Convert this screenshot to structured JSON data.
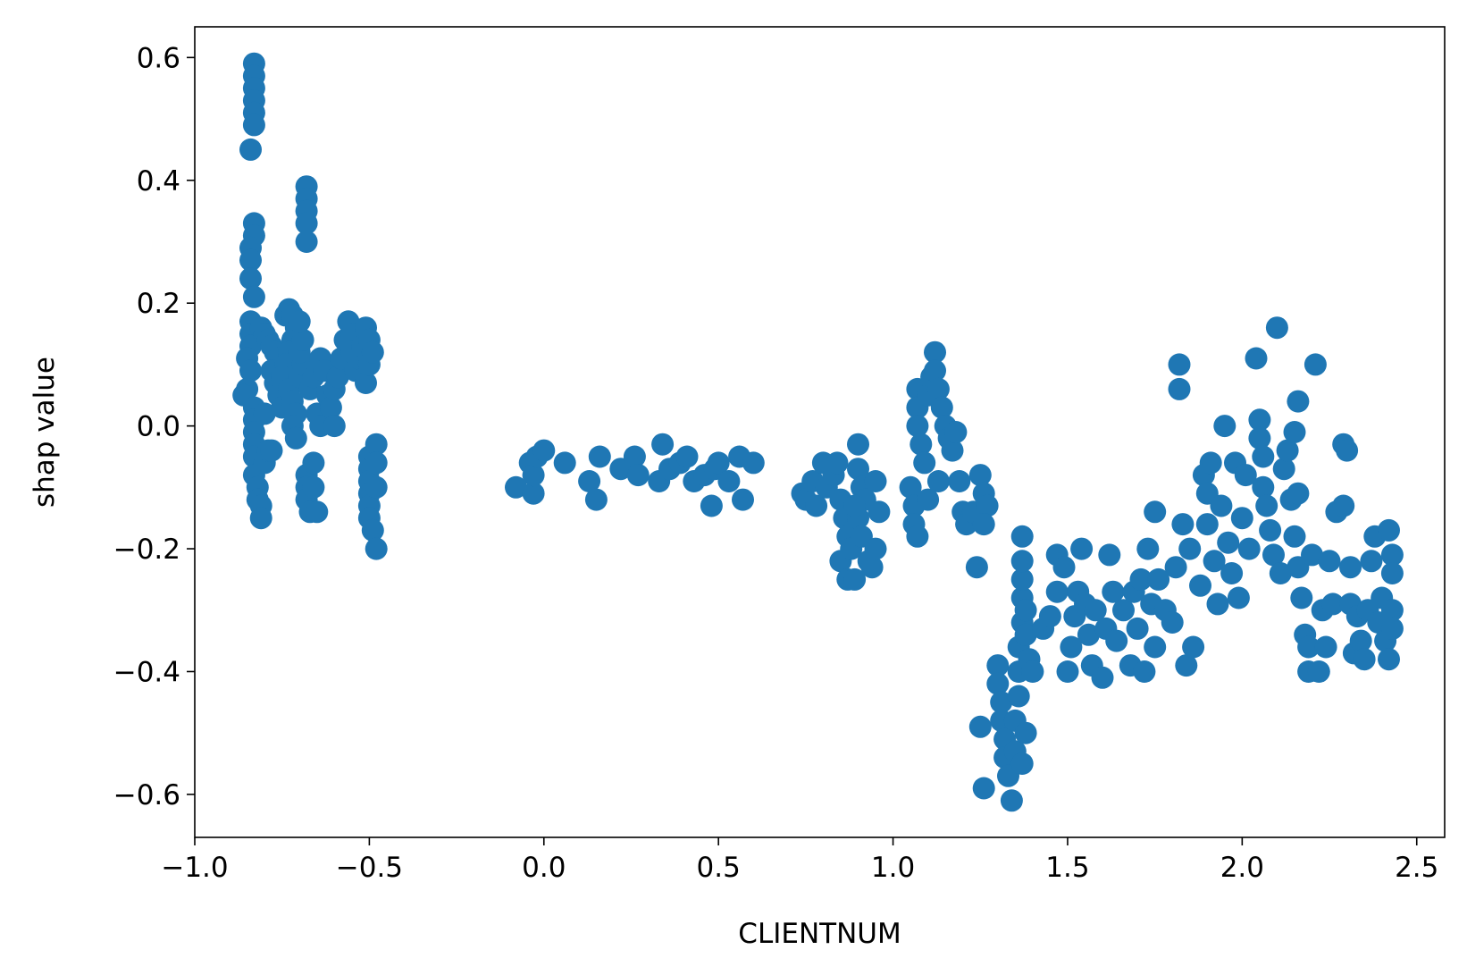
{
  "chart_data": {
    "type": "scatter",
    "xlabel": "CLIENTNUM",
    "ylabel": "shap value",
    "xlim": [
      -1.0,
      2.58
    ],
    "ylim": [
      -0.67,
      0.65
    ],
    "xticks": [
      -1.0,
      -0.5,
      0.0,
      0.5,
      1.0,
      1.5,
      2.0,
      2.5
    ],
    "xtick_labels": [
      "−1.0",
      "−0.5",
      "0.0",
      "0.5",
      "1.0",
      "1.5",
      "2.0",
      "2.5"
    ],
    "yticks": [
      0.6,
      0.4,
      0.2,
      0.0,
      -0.2,
      -0.4,
      -0.6
    ],
    "ytick_labels": [
      "0.6",
      "0.4",
      "0.2",
      "0.0",
      "−0.2",
      "−0.4",
      "−0.6"
    ],
    "grid": false,
    "marker_color": "#1f77b4",
    "points": [
      [
        -0.83,
        0.59
      ],
      [
        -0.83,
        0.57
      ],
      [
        -0.83,
        0.55
      ],
      [
        -0.83,
        0.53
      ],
      [
        -0.83,
        0.51
      ],
      [
        -0.83,
        0.49
      ],
      [
        -0.84,
        0.45
      ],
      [
        -0.83,
        0.33
      ],
      [
        -0.83,
        0.31
      ],
      [
        -0.84,
        0.29
      ],
      [
        -0.84,
        0.27
      ],
      [
        -0.84,
        0.24
      ],
      [
        -0.83,
        0.21
      ],
      [
        -0.84,
        0.17
      ],
      [
        -0.84,
        0.15
      ],
      [
        -0.84,
        0.13
      ],
      [
        -0.85,
        0.11
      ],
      [
        -0.84,
        0.09
      ],
      [
        -0.85,
        0.06
      ],
      [
        -0.86,
        0.05
      ],
      [
        -0.83,
        0.03
      ],
      [
        -0.83,
        0.01
      ],
      [
        -0.83,
        -0.01
      ],
      [
        -0.83,
        -0.03
      ],
      [
        -0.83,
        -0.05
      ],
      [
        -0.83,
        -0.08
      ],
      [
        -0.82,
        -0.1
      ],
      [
        -0.82,
        -0.12
      ],
      [
        -0.81,
        -0.13
      ],
      [
        -0.81,
        -0.15
      ],
      [
        -0.8,
        -0.06
      ],
      [
        -0.8,
        0.02
      ],
      [
        -0.79,
        -0.04
      ],
      [
        -0.78,
        -0.04
      ],
      [
        -0.81,
        0.16
      ],
      [
        -0.8,
        0.15
      ],
      [
        -0.79,
        0.14
      ],
      [
        -0.78,
        0.13
      ],
      [
        -0.77,
        0.12
      ],
      [
        -0.76,
        0.11
      ],
      [
        -0.78,
        0.09
      ],
      [
        -0.77,
        0.07
      ],
      [
        -0.76,
        0.05
      ],
      [
        -0.75,
        0.03
      ],
      [
        -0.74,
        0.18
      ],
      [
        -0.73,
        0.19
      ],
      [
        -0.72,
        0.18
      ],
      [
        -0.71,
        0.16
      ],
      [
        -0.72,
        0.14
      ],
      [
        -0.73,
        0.12
      ],
      [
        -0.74,
        0.1
      ],
      [
        -0.75,
        0.08
      ],
      [
        -0.73,
        0.06
      ],
      [
        -0.72,
        0.04
      ],
      [
        -0.71,
        0.02
      ],
      [
        -0.72,
        0.0
      ],
      [
        -0.71,
        -0.02
      ],
      [
        -0.7,
        0.08
      ],
      [
        -0.69,
        0.1
      ],
      [
        -0.7,
        0.12
      ],
      [
        -0.69,
        0.14
      ],
      [
        -0.7,
        0.17
      ],
      [
        -0.68,
        0.39
      ],
      [
        -0.68,
        0.37
      ],
      [
        -0.68,
        0.35
      ],
      [
        -0.68,
        0.33
      ],
      [
        -0.68,
        0.3
      ],
      [
        -0.68,
        -0.08
      ],
      [
        -0.68,
        -0.1
      ],
      [
        -0.68,
        -0.12
      ],
      [
        -0.67,
        -0.14
      ],
      [
        -0.66,
        -0.06
      ],
      [
        -0.66,
        -0.1
      ],
      [
        -0.65,
        -0.14
      ],
      [
        -0.67,
        0.06
      ],
      [
        -0.66,
        0.08
      ],
      [
        -0.65,
        0.1
      ],
      [
        -0.64,
        0.11
      ],
      [
        -0.63,
        0.09
      ],
      [
        -0.65,
        0.02
      ],
      [
        -0.64,
        0.0
      ],
      [
        -0.62,
        0.05
      ],
      [
        -0.61,
        0.03
      ],
      [
        -0.6,
        0.06
      ],
      [
        -0.6,
        0.0
      ],
      [
        -0.59,
        0.08
      ],
      [
        -0.58,
        0.11
      ],
      [
        -0.57,
        0.14
      ],
      [
        -0.56,
        0.17
      ],
      [
        -0.55,
        0.15
      ],
      [
        -0.55,
        0.12
      ],
      [
        -0.54,
        0.09
      ],
      [
        -0.53,
        0.11
      ],
      [
        -0.52,
        0.13
      ],
      [
        -0.51,
        0.16
      ],
      [
        -0.51,
        0.07
      ],
      [
        -0.5,
        0.14
      ],
      [
        -0.5,
        0.1
      ],
      [
        -0.49,
        0.12
      ],
      [
        -0.5,
        -0.05
      ],
      [
        -0.5,
        -0.07
      ],
      [
        -0.5,
        -0.09
      ],
      [
        -0.5,
        -0.11
      ],
      [
        -0.5,
        -0.13
      ],
      [
        -0.5,
        -0.15
      ],
      [
        -0.49,
        -0.17
      ],
      [
        -0.48,
        -0.2
      ],
      [
        -0.48,
        -0.03
      ],
      [
        -0.48,
        -0.06
      ],
      [
        -0.48,
        -0.1
      ],
      [
        -0.08,
        -0.1
      ],
      [
        -0.04,
        -0.06
      ],
      [
        -0.03,
        -0.11
      ],
      [
        -0.03,
        -0.08
      ],
      [
        -0.02,
        -0.05
      ],
      [
        0.0,
        -0.04
      ],
      [
        0.06,
        -0.06
      ],
      [
        0.13,
        -0.09
      ],
      [
        0.15,
        -0.12
      ],
      [
        0.16,
        -0.05
      ],
      [
        0.22,
        -0.07
      ],
      [
        0.26,
        -0.05
      ],
      [
        0.27,
        -0.08
      ],
      [
        0.33,
        -0.09
      ],
      [
        0.34,
        -0.03
      ],
      [
        0.36,
        -0.07
      ],
      [
        0.39,
        -0.06
      ],
      [
        0.41,
        -0.05
      ],
      [
        0.43,
        -0.09
      ],
      [
        0.46,
        -0.08
      ],
      [
        0.48,
        -0.13
      ],
      [
        0.49,
        -0.07
      ],
      [
        0.5,
        -0.06
      ],
      [
        0.53,
        -0.09
      ],
      [
        0.56,
        -0.05
      ],
      [
        0.57,
        -0.12
      ],
      [
        0.6,
        -0.06
      ],
      [
        0.74,
        -0.11
      ],
      [
        0.75,
        -0.12
      ],
      [
        0.77,
        -0.09
      ],
      [
        0.78,
        -0.13
      ],
      [
        0.8,
        -0.06
      ],
      [
        0.81,
        -0.1
      ],
      [
        0.83,
        -0.08
      ],
      [
        0.84,
        -0.06
      ],
      [
        0.85,
        -0.12
      ],
      [
        0.86,
        -0.15
      ],
      [
        0.87,
        -0.18
      ],
      [
        0.85,
        -0.22
      ],
      [
        0.87,
        -0.25
      ],
      [
        0.88,
        -0.2
      ],
      [
        0.89,
        -0.25
      ],
      [
        0.9,
        -0.03
      ],
      [
        0.9,
        -0.07
      ],
      [
        0.91,
        -0.1
      ],
      [
        0.92,
        -0.12
      ],
      [
        0.9,
        -0.15
      ],
      [
        0.91,
        -0.18
      ],
      [
        0.93,
        -0.22
      ],
      [
        0.94,
        -0.23
      ],
      [
        0.95,
        -0.2
      ],
      [
        0.95,
        -0.09
      ],
      [
        0.96,
        -0.14
      ],
      [
        0.89,
        -0.13
      ],
      [
        1.05,
        -0.1
      ],
      [
        1.06,
        -0.13
      ],
      [
        1.06,
        -0.16
      ],
      [
        1.07,
        -0.18
      ],
      [
        1.07,
        0.06
      ],
      [
        1.07,
        0.03
      ],
      [
        1.07,
        0.0
      ],
      [
        1.08,
        -0.03
      ],
      [
        1.09,
        -0.06
      ],
      [
        1.1,
        -0.12
      ],
      [
        1.1,
        0.05
      ],
      [
        1.11,
        0.08
      ],
      [
        1.12,
        0.12
      ],
      [
        1.12,
        0.09
      ],
      [
        1.13,
        0.06
      ],
      [
        1.14,
        0.03
      ],
      [
        1.15,
        0.0
      ],
      [
        1.16,
        -0.02
      ],
      [
        1.17,
        -0.04
      ],
      [
        1.13,
        -0.09
      ],
      [
        1.18,
        -0.01
      ],
      [
        1.19,
        -0.09
      ],
      [
        1.2,
        -0.14
      ],
      [
        1.21,
        -0.16
      ],
      [
        1.23,
        -0.14
      ],
      [
        1.24,
        -0.23
      ],
      [
        1.25,
        -0.08
      ],
      [
        1.26,
        -0.11
      ],
      [
        1.27,
        -0.13
      ],
      [
        1.26,
        -0.16
      ],
      [
        1.25,
        -0.49
      ],
      [
        1.26,
        -0.59
      ],
      [
        1.3,
        -0.39
      ],
      [
        1.3,
        -0.42
      ],
      [
        1.31,
        -0.45
      ],
      [
        1.31,
        -0.48
      ],
      [
        1.32,
        -0.51
      ],
      [
        1.32,
        -0.54
      ],
      [
        1.33,
        -0.57
      ],
      [
        1.34,
        -0.61
      ],
      [
        1.35,
        -0.53
      ],
      [
        1.35,
        -0.48
      ],
      [
        1.36,
        -0.44
      ],
      [
        1.36,
        -0.4
      ],
      [
        1.37,
        -0.55
      ],
      [
        1.38,
        -0.5
      ],
      [
        1.36,
        -0.36
      ],
      [
        1.37,
        -0.32
      ],
      [
        1.37,
        -0.28
      ],
      [
        1.37,
        -0.25
      ],
      [
        1.37,
        -0.22
      ],
      [
        1.37,
        -0.18
      ],
      [
        1.38,
        -0.3
      ],
      [
        1.38,
        -0.34
      ],
      [
        1.39,
        -0.38
      ],
      [
        1.4,
        -0.4
      ],
      [
        1.43,
        -0.33
      ],
      [
        1.45,
        -0.31
      ],
      [
        1.47,
        -0.27
      ],
      [
        1.47,
        -0.21
      ],
      [
        1.49,
        -0.23
      ],
      [
        1.5,
        -0.4
      ],
      [
        1.51,
        -0.36
      ],
      [
        1.52,
        -0.31
      ],
      [
        1.53,
        -0.27
      ],
      [
        1.54,
        -0.2
      ],
      [
        1.55,
        -0.29
      ],
      [
        1.56,
        -0.34
      ],
      [
        1.57,
        -0.39
      ],
      [
        1.58,
        -0.3
      ],
      [
        1.6,
        -0.41
      ],
      [
        1.61,
        -0.33
      ],
      [
        1.62,
        -0.21
      ],
      [
        1.63,
        -0.27
      ],
      [
        1.64,
        -0.35
      ],
      [
        1.66,
        -0.3
      ],
      [
        1.68,
        -0.39
      ],
      [
        1.69,
        -0.27
      ],
      [
        1.7,
        -0.33
      ],
      [
        1.71,
        -0.25
      ],
      [
        1.72,
        -0.4
      ],
      [
        1.73,
        -0.2
      ],
      [
        1.74,
        -0.29
      ],
      [
        1.75,
        -0.36
      ],
      [
        1.75,
        -0.14
      ],
      [
        1.76,
        -0.25
      ],
      [
        1.78,
        -0.3
      ],
      [
        1.8,
        -0.32
      ],
      [
        1.81,
        -0.23
      ],
      [
        1.82,
        0.1
      ],
      [
        1.82,
        0.06
      ],
      [
        1.83,
        -0.16
      ],
      [
        1.84,
        -0.39
      ],
      [
        1.85,
        -0.2
      ],
      [
        1.86,
        -0.36
      ],
      [
        1.88,
        -0.26
      ],
      [
        1.89,
        -0.08
      ],
      [
        1.9,
        -0.11
      ],
      [
        1.9,
        -0.16
      ],
      [
        1.91,
        -0.06
      ],
      [
        1.92,
        -0.22
      ],
      [
        1.93,
        -0.29
      ],
      [
        1.94,
        -0.13
      ],
      [
        1.95,
        0.0
      ],
      [
        1.96,
        -0.19
      ],
      [
        1.97,
        -0.24
      ],
      [
        1.98,
        -0.06
      ],
      [
        1.99,
        -0.28
      ],
      [
        2.0,
        -0.15
      ],
      [
        2.01,
        -0.08
      ],
      [
        2.02,
        -0.2
      ],
      [
        2.04,
        0.11
      ],
      [
        2.05,
        0.01
      ],
      [
        2.05,
        -0.02
      ],
      [
        2.06,
        -0.05
      ],
      [
        2.06,
        -0.1
      ],
      [
        2.07,
        -0.13
      ],
      [
        2.08,
        -0.17
      ],
      [
        2.09,
        -0.21
      ],
      [
        2.1,
        0.16
      ],
      [
        2.11,
        -0.24
      ],
      [
        2.12,
        -0.07
      ],
      [
        2.13,
        -0.04
      ],
      [
        2.14,
        -0.12
      ],
      [
        2.15,
        -0.18
      ],
      [
        2.15,
        -0.01
      ],
      [
        2.16,
        0.04
      ],
      [
        2.16,
        -0.11
      ],
      [
        2.16,
        -0.23
      ],
      [
        2.17,
        -0.28
      ],
      [
        2.18,
        -0.34
      ],
      [
        2.19,
        -0.36
      ],
      [
        2.19,
        -0.4
      ],
      [
        2.2,
        -0.21
      ],
      [
        2.21,
        0.1
      ],
      [
        2.22,
        -0.4
      ],
      [
        2.23,
        -0.3
      ],
      [
        2.24,
        -0.36
      ],
      [
        2.25,
        -0.22
      ],
      [
        2.26,
        -0.29
      ],
      [
        2.27,
        -0.14
      ],
      [
        2.29,
        -0.03
      ],
      [
        2.29,
        -0.13
      ],
      [
        2.3,
        -0.04
      ],
      [
        2.31,
        -0.23
      ],
      [
        2.31,
        -0.29
      ],
      [
        2.32,
        -0.37
      ],
      [
        2.33,
        -0.31
      ],
      [
        2.34,
        -0.35
      ],
      [
        2.35,
        -0.38
      ],
      [
        2.36,
        -0.3
      ],
      [
        2.37,
        -0.22
      ],
      [
        2.38,
        -0.18
      ],
      [
        2.39,
        -0.32
      ],
      [
        2.4,
        -0.28
      ],
      [
        2.41,
        -0.35
      ],
      [
        2.42,
        -0.38
      ],
      [
        2.42,
        -0.17
      ],
      [
        2.43,
        -0.21
      ],
      [
        2.43,
        -0.24
      ],
      [
        2.43,
        -0.3
      ],
      [
        2.43,
        -0.33
      ]
    ]
  }
}
